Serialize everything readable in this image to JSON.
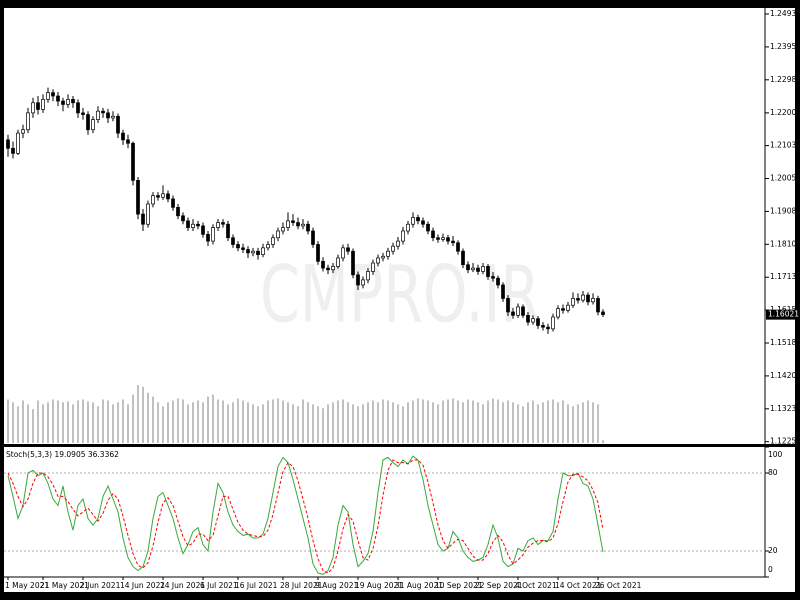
{
  "chart_data": [
    {
      "type": "candlestick",
      "watermark": "CMPRO.IR",
      "up_color": "#ffffff",
      "down_color": "#000000",
      "volume_color": "#808080",
      "ylim": [
        1.12187,
        1.25108
      ],
      "yticks": [
        {
          "value": 1.2493,
          "label": "1.24930"
        },
        1.23955,
        {
          "value": 1.2298,
          "label": "1.22980"
        },
        {
          "value": 1.22,
          "label": "1.22000"
        },
        {
          "value": 1.2103,
          "label": "1.21030"
        },
        1.20055,
        {
          "value": 1.1908,
          "label": "1.19080"
        },
        1.18105,
        {
          "value": 1.1713,
          "label": "1.17130"
        },
        1.16155,
        {
          "value": 1.1518,
          "label": "1.15180"
        },
        1.14205,
        {
          "value": 1.1323,
          "label": "1.13230"
        },
        1.12255
      ],
      "last_price": 1.16021,
      "ohlc": [
        [
          1.212,
          1.2135,
          1.207,
          1.2095
        ],
        [
          1.2095,
          1.2115,
          1.2065,
          1.208
        ],
        [
          1.208,
          1.215,
          1.2075,
          1.214
        ],
        [
          1.214,
          1.2165,
          1.2125,
          1.215
        ],
        [
          1.215,
          1.2215,
          1.214,
          1.22
        ],
        [
          1.22,
          1.2245,
          1.2185,
          1.223
        ],
        [
          1.223,
          1.225,
          1.2195,
          1.221
        ],
        [
          1.221,
          1.2255,
          1.22,
          1.224
        ],
        [
          1.224,
          1.2275,
          1.223,
          1.226
        ],
        [
          1.226,
          1.227,
          1.2235,
          1.225
        ],
        [
          1.225,
          1.2262,
          1.222,
          1.2235
        ],
        [
          1.2235,
          1.2245,
          1.2205,
          1.2225
        ],
        [
          1.2225,
          1.2255,
          1.2215,
          1.224
        ],
        [
          1.224,
          1.225,
          1.2215,
          1.223
        ],
        [
          1.223,
          1.224,
          1.2185,
          1.22
        ],
        [
          1.22,
          1.2215,
          1.218,
          1.2195
        ],
        [
          1.2195,
          1.2205,
          1.2135,
          1.215
        ],
        [
          1.215,
          1.219,
          1.214,
          1.218
        ],
        [
          1.218,
          1.222,
          1.217,
          1.2205
        ],
        [
          1.2205,
          1.2215,
          1.2185,
          1.22
        ],
        [
          1.22,
          1.2212,
          1.217,
          1.2185
        ],
        [
          1.2185,
          1.2205,
          1.2175,
          1.219
        ],
        [
          1.219,
          1.2198,
          1.2125,
          1.214
        ],
        [
          1.214,
          1.215,
          1.2105,
          1.212
        ],
        [
          1.212,
          1.2135,
          1.2095,
          1.211
        ],
        [
          1.211,
          1.2115,
          1.1985,
          1.2
        ],
        [
          1.2,
          1.201,
          1.1885,
          1.19
        ],
        [
          1.19,
          1.1915,
          1.185,
          1.187
        ],
        [
          1.187,
          1.194,
          1.186,
          1.193
        ],
        [
          1.193,
          1.1965,
          1.192,
          1.1955
        ],
        [
          1.1955,
          1.1965,
          1.194,
          1.195
        ],
        [
          1.195,
          1.1985,
          1.1942,
          1.196
        ],
        [
          1.196,
          1.197,
          1.1935,
          1.1945
        ],
        [
          1.1945,
          1.1955,
          1.191,
          1.192
        ],
        [
          1.192,
          1.193,
          1.1885,
          1.1895
        ],
        [
          1.1895,
          1.1905,
          1.187,
          1.188
        ],
        [
          1.188,
          1.189,
          1.185,
          1.186
        ],
        [
          1.186,
          1.1885,
          1.185,
          1.187
        ],
        [
          1.187,
          1.188,
          1.1855,
          1.1865
        ],
        [
          1.1865,
          1.1875,
          1.183,
          1.184
        ],
        [
          1.184,
          1.185,
          1.1805,
          1.182
        ],
        [
          1.182,
          1.187,
          1.181,
          1.186
        ],
        [
          1.186,
          1.1885,
          1.185,
          1.1875
        ],
        [
          1.1875,
          1.1885,
          1.186,
          1.187
        ],
        [
          1.187,
          1.188,
          1.182,
          1.183
        ],
        [
          1.183,
          1.184,
          1.18,
          1.181
        ],
        [
          1.181,
          1.182,
          1.179,
          1.18
        ],
        [
          1.18,
          1.1812,
          1.1785,
          1.1795
        ],
        [
          1.1795,
          1.1805,
          1.177,
          1.1785
        ],
        [
          1.1785,
          1.18,
          1.1775,
          1.179
        ],
        [
          1.179,
          1.18,
          1.1765,
          1.178
        ],
        [
          1.178,
          1.1812,
          1.1772,
          1.18
        ],
        [
          1.18,
          1.182,
          1.1792,
          1.181
        ],
        [
          1.181,
          1.184,
          1.18,
          1.183
        ],
        [
          1.183,
          1.186,
          1.182,
          1.185
        ],
        [
          1.185,
          1.1875,
          1.184,
          1.186
        ],
        [
          1.186,
          1.1905,
          1.185,
          1.188
        ],
        [
          1.188,
          1.19,
          1.1865,
          1.1875
        ],
        [
          1.1875,
          1.189,
          1.1855,
          1.1865
        ],
        [
          1.1865,
          1.1885,
          1.1855,
          1.187
        ],
        [
          1.187,
          1.188,
          1.184,
          1.185
        ],
        [
          1.185,
          1.186,
          1.18,
          1.181
        ],
        [
          1.181,
          1.182,
          1.175,
          1.176
        ],
        [
          1.176,
          1.1772,
          1.173,
          1.174
        ],
        [
          1.174,
          1.175,
          1.1722,
          1.1735
        ],
        [
          1.1735,
          1.1755,
          1.1725,
          1.1745
        ],
        [
          1.1745,
          1.178,
          1.1738,
          1.177
        ],
        [
          1.177,
          1.181,
          1.176,
          1.18
        ],
        [
          1.18,
          1.1812,
          1.178,
          1.179
        ],
        [
          1.179,
          1.1798,
          1.171,
          1.172
        ],
        [
          1.172,
          1.173,
          1.1675,
          1.169
        ],
        [
          1.169,
          1.1715,
          1.168,
          1.1705
        ],
        [
          1.1705,
          1.174,
          1.1695,
          1.173
        ],
        [
          1.173,
          1.1765,
          1.172,
          1.1755
        ],
        [
          1.1755,
          1.178,
          1.1745,
          1.177
        ],
        [
          1.177,
          1.1785,
          1.176,
          1.1775
        ],
        [
          1.1775,
          1.18,
          1.1765,
          1.179
        ],
        [
          1.179,
          1.1815,
          1.178,
          1.1805
        ],
        [
          1.1805,
          1.1832,
          1.1795,
          1.182
        ],
        [
          1.182,
          1.1862,
          1.181,
          1.185
        ],
        [
          1.185,
          1.188,
          1.184,
          1.187
        ],
        [
          1.187,
          1.1905,
          1.186,
          1.189
        ],
        [
          1.189,
          1.1898,
          1.187,
          1.188
        ],
        [
          1.188,
          1.189,
          1.186,
          1.187
        ],
        [
          1.187,
          1.1878,
          1.184,
          1.185
        ],
        [
          1.185,
          1.186,
          1.182,
          1.183
        ],
        [
          1.183,
          1.184,
          1.1815,
          1.1825
        ],
        [
          1.1825,
          1.1842,
          1.1818,
          1.183
        ],
        [
          1.183,
          1.1838,
          1.181,
          1.182
        ],
        [
          1.182,
          1.1835,
          1.1805,
          1.1815
        ],
        [
          1.1815,
          1.1822,
          1.178,
          1.179
        ],
        [
          1.179,
          1.1798,
          1.174,
          1.175
        ],
        [
          1.175,
          1.176,
          1.1725,
          1.1735
        ],
        [
          1.1735,
          1.1755,
          1.1728,
          1.174
        ],
        [
          1.174,
          1.175,
          1.172,
          1.173
        ],
        [
          1.173,
          1.1755,
          1.1722,
          1.1745
        ],
        [
          1.1745,
          1.1752,
          1.1705,
          1.1715
        ],
        [
          1.1715,
          1.1728,
          1.17,
          1.171
        ],
        [
          1.171,
          1.1718,
          1.168,
          1.169
        ],
        [
          1.169,
          1.1698,
          1.164,
          1.165
        ],
        [
          1.165,
          1.166,
          1.1598,
          1.161
        ],
        [
          1.161,
          1.1622,
          1.159,
          1.16
        ],
        [
          1.16,
          1.1635,
          1.1592,
          1.1625
        ],
        [
          1.1625,
          1.1632,
          1.1592,
          1.16
        ],
        [
          1.16,
          1.161,
          1.157,
          1.158
        ],
        [
          1.158,
          1.16,
          1.1572,
          1.159
        ],
        [
          1.159,
          1.1598,
          1.156,
          1.157
        ],
        [
          1.157,
          1.158,
          1.1555,
          1.1565
        ],
        [
          1.1565,
          1.1575,
          1.1545,
          1.156
        ],
        [
          1.156,
          1.1605,
          1.1552,
          1.1595
        ],
        [
          1.1595,
          1.163,
          1.1588,
          1.162
        ],
        [
          1.162,
          1.1632,
          1.1605,
          1.1615
        ],
        [
          1.1615,
          1.164,
          1.1608,
          1.163
        ],
        [
          1.163,
          1.1668,
          1.1622,
          1.165
        ],
        [
          1.165,
          1.1665,
          1.1635,
          1.1645
        ],
        [
          1.1645,
          1.1672,
          1.1638,
          1.166
        ],
        [
          1.166,
          1.1668,
          1.163,
          1.164
        ],
        [
          1.164,
          1.1665,
          1.1632,
          1.165
        ],
        [
          1.165,
          1.1658,
          1.16,
          1.161
        ],
        [
          1.161,
          1.1618,
          1.1595,
          1.16021
        ]
      ],
      "volume": [
        45,
        42,
        38,
        44,
        40,
        35,
        44,
        40,
        42,
        45,
        44,
        42,
        43,
        40,
        44,
        45,
        43,
        42,
        38,
        45,
        44,
        40,
        42,
        45,
        40,
        50,
        60,
        58,
        52,
        48,
        42,
        38,
        42,
        44,
        46,
        45,
        40,
        42,
        44,
        42,
        48,
        50,
        45,
        44,
        40,
        42,
        46,
        44,
        42,
        40,
        38,
        40,
        44,
        45,
        46,
        44,
        42,
        40,
        38,
        45,
        42,
        40,
        38,
        36,
        40,
        42,
        44,
        45,
        42,
        40,
        38,
        40,
        42,
        44,
        42,
        45,
        44,
        42,
        40,
        38,
        42,
        44,
        46,
        45,
        44,
        42,
        40,
        44,
        45,
        46,
        44,
        42,
        45,
        44,
        42,
        40,
        44,
        46,
        45,
        42,
        44,
        42,
        40,
        38,
        42,
        44,
        40,
        42,
        44,
        45,
        42,
        44,
        40,
        38,
        40,
        42,
        44,
        42,
        40,
        3
      ]
    },
    {
      "type": "line",
      "title": "Stoch(5,3,3) 19.0905 36.3362",
      "ylim": [
        0,
        100
      ],
      "yticks": [
        0,
        20,
        80,
        100
      ],
      "levels": [
        20,
        80
      ],
      "level_color": "#b0b0b0",
      "categories": [
        "1 May 2021",
        null,
        null,
        null,
        null,
        null,
        null,
        "21 May 2021",
        null,
        null,
        null,
        null,
        null,
        null,
        null,
        "2 Jun 2021",
        null,
        null,
        null,
        null,
        null,
        null,
        null,
        "14 Jun 2021",
        null,
        null,
        null,
        null,
        null,
        null,
        null,
        "24 Jun 2021",
        null,
        null,
        null,
        null,
        null,
        null,
        null,
        "6 Jul 2021",
        null,
        null,
        null,
        null,
        null,
        null,
        "16 Jul 2021",
        null,
        null,
        null,
        null,
        null,
        null,
        null,
        null,
        "28 Jul 2021",
        null,
        null,
        null,
        null,
        null,
        null,
        "9 Aug 2021",
        null,
        null,
        null,
        null,
        null,
        null,
        null,
        "19 Aug 2021",
        null,
        null,
        null,
        null,
        null,
        null,
        null,
        "31 Aug 2021",
        null,
        null,
        null,
        null,
        null,
        null,
        null,
        "10 Sep 2021",
        null,
        null,
        null,
        null,
        null,
        null,
        null,
        "22 Sep 2021",
        null,
        null,
        null,
        null,
        null,
        null,
        null,
        "4 Oct 2021",
        null,
        null,
        null,
        null,
        null,
        null,
        null,
        "14 Oct 2021",
        null,
        null,
        null,
        null,
        null,
        null,
        null,
        "26 Oct 2021",
        null
      ],
      "series": [
        {
          "color": "#3aa83a",
          "dashed": false,
          "values": [
            78,
            62,
            45,
            55,
            80,
            82,
            78,
            80,
            72,
            60,
            55,
            70,
            50,
            36,
            55,
            60,
            45,
            40,
            45,
            62,
            70,
            60,
            50,
            30,
            15,
            8,
            5,
            8,
            20,
            45,
            62,
            65,
            55,
            45,
            30,
            18,
            25,
            35,
            38,
            25,
            20,
            50,
            72,
            65,
            50,
            40,
            35,
            32,
            33,
            30,
            30,
            33,
            45,
            65,
            85,
            92,
            88,
            75,
            60,
            45,
            30,
            10,
            3,
            2,
            5,
            15,
            40,
            55,
            50,
            25,
            8,
            12,
            18,
            35,
            65,
            90,
            92,
            88,
            85,
            90,
            87,
            93,
            90,
            75,
            55,
            40,
            25,
            20,
            22,
            35,
            30,
            20,
            15,
            12,
            13,
            15,
            25,
            40,
            30,
            12,
            8,
            10,
            22,
            20,
            28,
            30,
            25,
            28,
            28,
            35,
            60,
            80,
            78,
            78,
            80,
            72,
            70,
            60,
            40,
            19.0905
          ]
        },
        {
          "color": "#ff0000",
          "dashed": true,
          "values": [
            80,
            72,
            62,
            54,
            60,
            72,
            80,
            80,
            77,
            71,
            62,
            62,
            58,
            52,
            47,
            50,
            53,
            48,
            43,
            49,
            59,
            64,
            60,
            47,
            32,
            18,
            9,
            7,
            11,
            24,
            42,
            57,
            61,
            55,
            43,
            31,
            24,
            26,
            33,
            33,
            28,
            32,
            47,
            62,
            62,
            52,
            42,
            36,
            33,
            32,
            31,
            31,
            36,
            48,
            65,
            81,
            88,
            85,
            74,
            60,
            45,
            28,
            14,
            5,
            3,
            7,
            20,
            37,
            48,
            43,
            28,
            15,
            13,
            22,
            39,
            63,
            82,
            90,
            88,
            88,
            87,
            90,
            90,
            86,
            73,
            57,
            40,
            28,
            22,
            26,
            29,
            28,
            22,
            16,
            13,
            13,
            18,
            27,
            32,
            27,
            17,
            10,
            13,
            17,
            23,
            26,
            28,
            28,
            27,
            30,
            41,
            58,
            73,
            79,
            79,
            77,
            74,
            67,
            57,
            36.3362
          ]
        }
      ]
    }
  ]
}
